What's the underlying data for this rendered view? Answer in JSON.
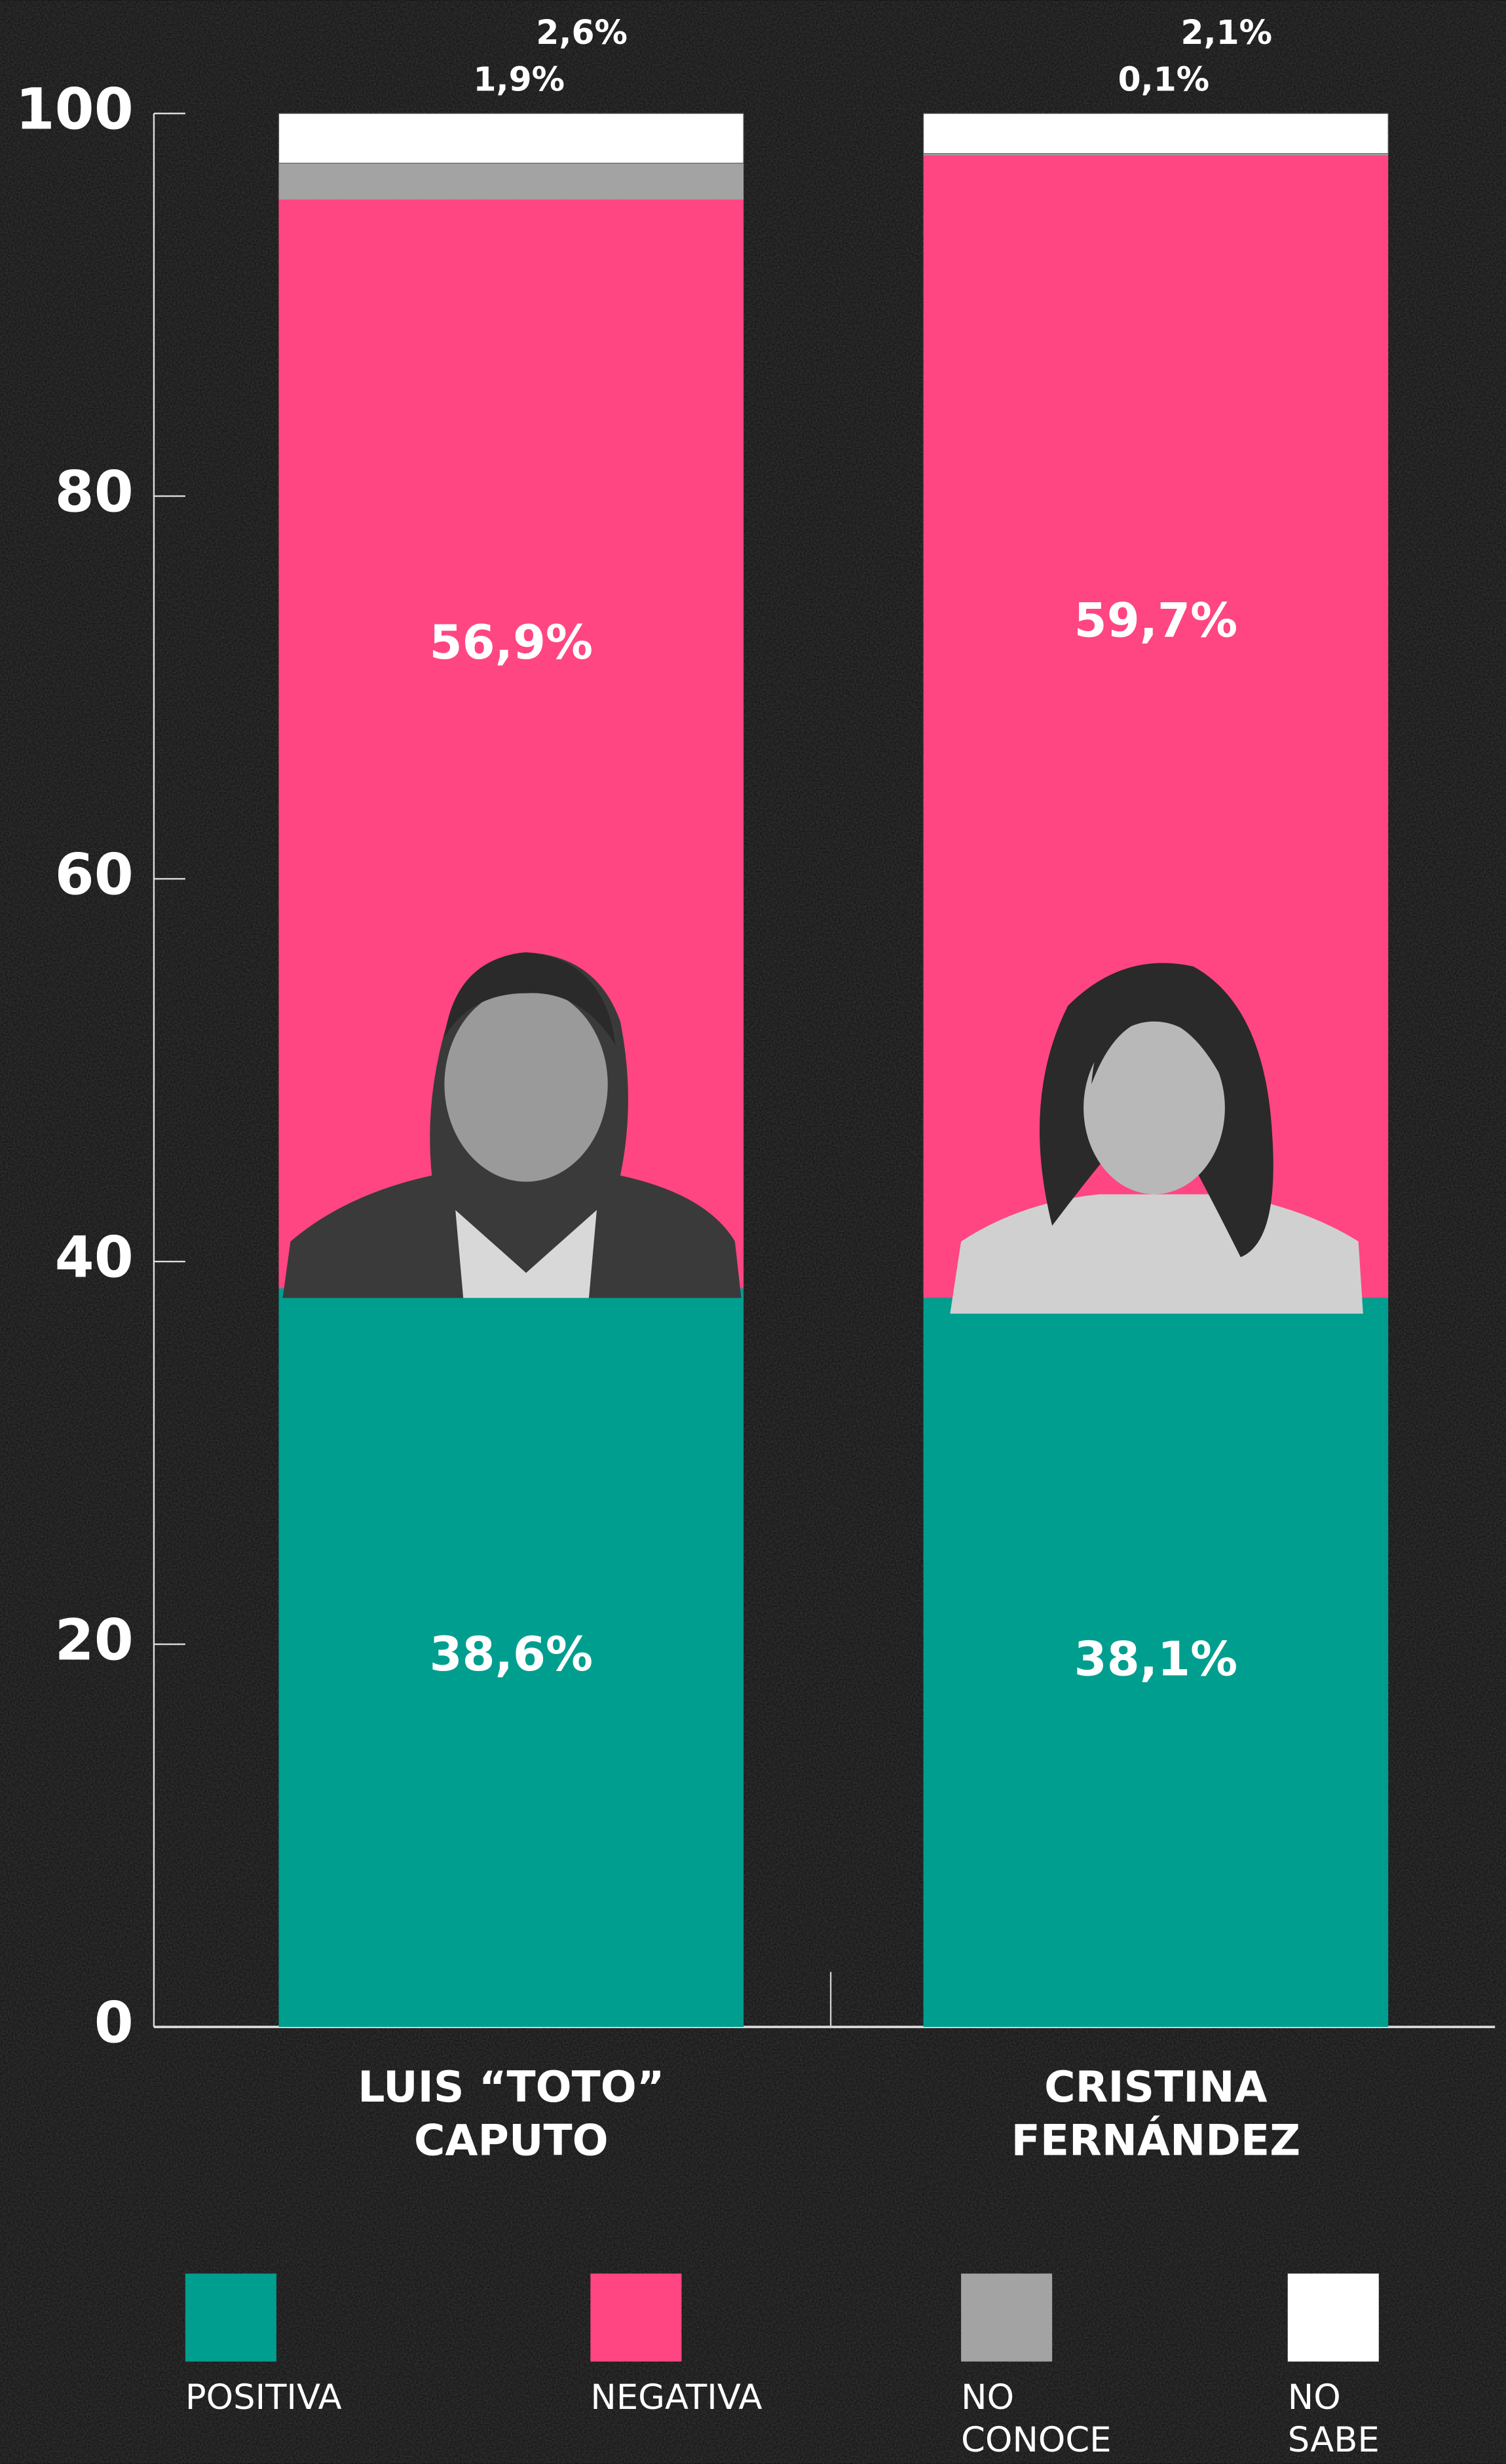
{
  "chart_data": {
    "type": "stacked_bar",
    "categories": [
      "LUIS “TOTO” CAPUTO",
      "CRISTINA FERNÁNDEZ"
    ],
    "series": [
      {
        "name": "POSITIVA",
        "color": "#009e8f",
        "values": [
          38.6,
          38.1
        ],
        "value_labels": [
          "38,6%",
          "38,1%"
        ]
      },
      {
        "name": "NEGATIVA",
        "color": "#ff4682",
        "values": [
          56.9,
          59.7
        ],
        "value_labels": [
          "56,9%",
          "59,7%"
        ]
      },
      {
        "name": "NO CONOCE",
        "color": "#a3a3a3",
        "values": [
          1.9,
          0.1
        ],
        "value_labels": [
          "1,9%",
          "0,1%"
        ]
      },
      {
        "name": "NO SABE",
        "color": "#ffffff",
        "values": [
          2.6,
          2.1
        ],
        "value_labels": [
          "2,6%",
          "2,1%"
        ]
      }
    ],
    "ylim": [
      0,
      100
    ],
    "yticks": [
      0,
      20,
      40,
      60,
      80,
      100
    ]
  }
}
